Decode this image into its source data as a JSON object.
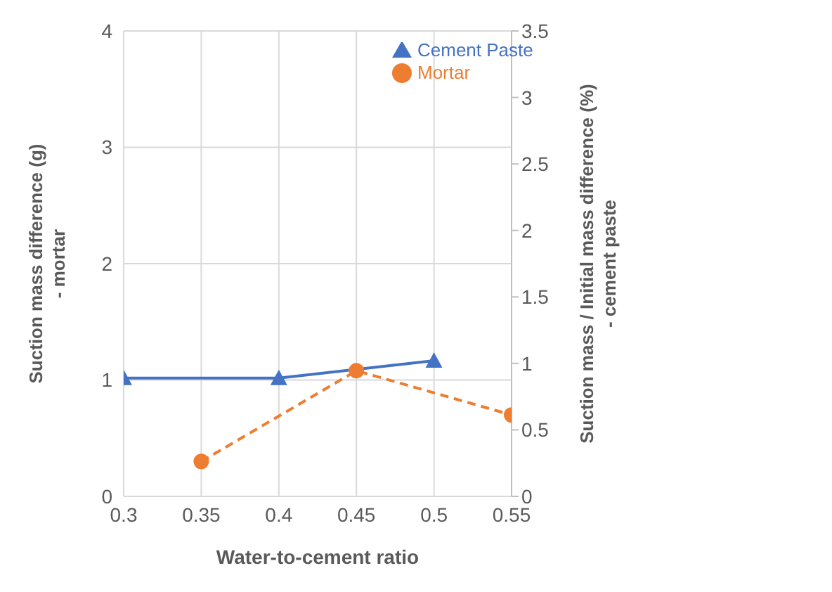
{
  "chart_data": {
    "type": "line",
    "xlabel": "Water-to-cement ratio",
    "ylabel": "Suction mass difference (g)\n- mortar",
    "y2label": "Suction mass / Initial mass difference (%)\n- cement  paste",
    "xlim": [
      0.3,
      0.55
    ],
    "xticks": [
      0.3,
      0.35,
      0.4,
      0.45,
      0.5,
      0.55
    ],
    "ylim": [
      0,
      4
    ],
    "yticks": [
      0,
      1,
      2,
      3,
      4
    ],
    "y2lim": [
      0,
      3.5
    ],
    "y2ticks": [
      0,
      0.5,
      1,
      1.5,
      2,
      2.5,
      3,
      3.5
    ],
    "grid": true,
    "legend": "top right",
    "series": [
      {
        "name": "Mortar",
        "color": "#ed7d31",
        "marker": "circle",
        "line_style": "dashed",
        "x": [
          0.35,
          0.45,
          0.55
        ],
        "values": [
          0.3,
          1.08,
          0.7
        ]
      },
      {
        "name": "Cement Paste",
        "color": "#4472c4",
        "marker": "triangle",
        "line_style": "solid",
        "axis": "y2",
        "x": [
          0.3,
          0.4,
          0.5
        ],
        "values": [
          0.89,
          0.89,
          1.02
        ]
      }
    ]
  }
}
